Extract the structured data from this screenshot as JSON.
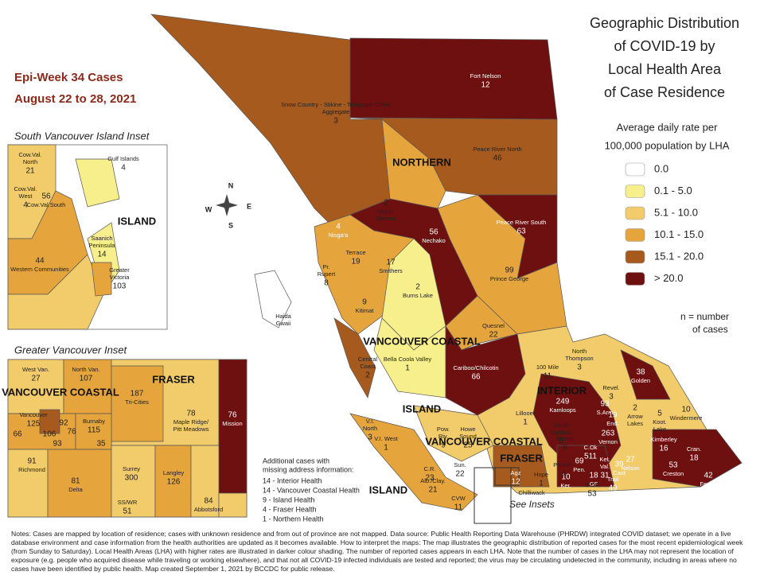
{
  "title": [
    "Geographic Distribution",
    "of COVID-19 by",
    "Local Health Area",
    "of Case Residence"
  ],
  "epi_week": {
    "title": "Epi-Week 34 Cases",
    "dates": "August 22 to 28, 2021"
  },
  "legend": {
    "subtitle": [
      "Average daily rate per",
      "100,000 population by LHA"
    ],
    "items": [
      {
        "label": "0.0",
        "color": "#ffffff"
      },
      {
        "label": "0.1 - 5.0",
        "color": "#f7ef8c"
      },
      {
        "label": "5.1 - 10.0",
        "color": "#f2cc6a"
      },
      {
        "label": "10.1 - 15.0",
        "color": "#e6a43c"
      },
      {
        "label": "15.1 - 20.0",
        "color": "#a65a1e"
      },
      {
        "label": "> 20.0",
        "color": "#6e1010"
      }
    ],
    "note": [
      "n = number",
      "of cases"
    ]
  },
  "compass": [
    "N",
    "E",
    "S",
    "W"
  ],
  "main_map": {
    "regions": [
      "NORTHERN",
      "VANCOUVER COASTAL",
      "INTERIOR",
      "ISLAND",
      "FRASER",
      "ISLAND",
      "VANCOUVER COASTAL"
    ],
    "areas": [
      {
        "name": [
          "Fort Nelson"
        ],
        "cases": 12
      },
      {
        "name": [
          "Snow Country - Stikine - Telegraph Creek",
          "Aggregate"
        ],
        "cases": 3
      },
      {
        "name": [
          "Peace River North"
        ],
        "cases": 46
      },
      {
        "name": [
          "Peace River South"
        ],
        "cases": 63
      },
      {
        "name": [
          "Nechako"
        ],
        "cases": 56
      },
      {
        "name": [
          "Prince George"
        ],
        "cases": 99
      },
      {
        "name": [
          "Nisga'a"
        ],
        "cases": 4
      },
      {
        "name": [
          "Upper",
          "Skeena"
        ],
        "cases": 2
      },
      {
        "name": [
          "Terrace"
        ],
        "cases": 19
      },
      {
        "name": [
          "Smithers"
        ],
        "cases": 17
      },
      {
        "name": [
          "Pr.",
          "Rupert"
        ],
        "cases": 8
      },
      {
        "name": [
          "Burns Lake"
        ],
        "cases": 2
      },
      {
        "name": [
          "Kitimat"
        ],
        "cases": 9
      },
      {
        "name": [
          "Haida",
          "Gwaii"
        ]
      },
      {
        "name": [
          "Quesnel"
        ],
        "cases": 22
      },
      {
        "name": [
          "Central",
          "Coast"
        ],
        "cases": 2
      },
      {
        "name": [
          "Bella Coola Valley"
        ],
        "cases": 1
      },
      {
        "name": [
          "Cariboo/Chilcotin"
        ],
        "cases": 66
      },
      {
        "name": [
          "100 Mile"
        ],
        "cases": 11
      },
      {
        "name": [
          "North",
          "Thompson"
        ],
        "cases": 3
      },
      {
        "name": [
          "Revel."
        ],
        "cases": 3
      },
      {
        "name": [
          "Golden"
        ],
        "cases": 38
      },
      {
        "name": [
          "Kamloops"
        ],
        "cases": 249
      },
      {
        "name": [
          "Lillooet"
        ],
        "cases": 1
      },
      {
        "name": [
          "South",
          "Cariboo"
        ],
        "cases": 5
      },
      {
        "name": [
          "S.Arm"
        ],
        "cases": 93
      },
      {
        "name": [
          "End."
        ],
        "cases": 19
      },
      {
        "name": [
          "Vernon"
        ],
        "cases": 263
      },
      {
        "name": [
          "Arrow",
          "Lakes"
        ],
        "cases": 2
      },
      {
        "name": [
          "Koot.",
          "Lake"
        ],
        "cases": 5
      },
      {
        "name": [
          "Windermere"
        ],
        "cases": 10
      },
      {
        "name": [
          "Merritt"
        ],
        "cases": 8
      },
      {
        "name": [
          "Kimberley"
        ],
        "cases": 16
      },
      {
        "name": [
          "Cran."
        ],
        "cases": 18
      },
      {
        "name": [
          "Fernie"
        ],
        "cases": 42
      },
      {
        "name": [
          "Creston"
        ],
        "cases": 53
      },
      {
        "name": [
          "Nelson"
        ],
        "cases": 27
      },
      {
        "name": [
          "Cast"
        ],
        "cases": 39
      },
      {
        "name": [
          "Trail"
        ],
        "cases": 49
      },
      {
        "name": [
          "GF"
        ],
        "cases": 18
      },
      {
        "name": [
          "C.Ok"
        ],
        "cases": 511
      },
      {
        "name": [
          "Pen."
        ],
        "cases": 69
      },
      {
        "name": [
          "Ker."
        ],
        "cases": 10
      },
      {
        "name": [
          "S.OK"
        ],
        "cases": 53
      },
      {
        "name": [
          "Ket.",
          "Val."
        ],
        "cases": 31
      },
      {
        "name": [
          "Princet."
        ],
        "cases": 4
      },
      {
        "name": [
          "Hope"
        ],
        "cases": 1
      },
      {
        "name": [
          "Chilliwack"
        ]
      },
      {
        "name": [
          "V.I.",
          "North"
        ],
        "cases": 3
      },
      {
        "name": [
          "V.I. West"
        ],
        "cases": 1
      },
      {
        "name": [
          "C.R."
        ],
        "cases": 23
      },
      {
        "name": [
          "Pow.",
          "Riv."
        ],
        "cases": 9
      },
      {
        "name": [
          "Howe",
          "Sound"
        ],
        "cases": 25
      },
      {
        "name": [
          "Sun."
        ],
        "cases": 22
      },
      {
        "name": [
          "Alb./Clay."
        ],
        "cases": 21
      },
      {
        "name": [
          "CVW"
        ],
        "cases": 11
      },
      {
        "name": [
          "Agz"
        ],
        "cases": 12
      }
    ],
    "see_insets": "See Insets"
  },
  "south_island_inset": {
    "title": "South Vancouver Island Inset",
    "region": "ISLAND",
    "areas": [
      {
        "name": [
          "Cow.Val.",
          "North"
        ],
        "cases": 21
      },
      {
        "name": [
          "Gulf Islands"
        ],
        "cases": 4
      },
      {
        "name": [
          "Cow.Val.",
          "West"
        ],
        "cases": 4
      },
      {
        "name": [
          "Cow.Val.South"
        ],
        "cases": 56
      },
      {
        "name": [
          "Saanich",
          "Peninsula"
        ],
        "cases": 14
      },
      {
        "name": [
          "Western Communities"
        ],
        "cases": 44
      },
      {
        "name": [
          "Greater",
          "Victoria"
        ],
        "cases": 103
      }
    ]
  },
  "vancouver_inset": {
    "title": "Greater Vancouver Inset",
    "regions": [
      "VANCOUVER COASTAL",
      "FRASER"
    ],
    "areas": [
      {
        "name": [
          "West Van."
        ],
        "cases": 27
      },
      {
        "name": [
          "North Van."
        ],
        "cases": 107
      },
      {
        "name": [
          "Vancouver"
        ],
        "cases": 125
      },
      {
        "name": [
          "Tri-Cities"
        ],
        "cases": 187
      },
      {
        "name": [
          "Maple Ridge/",
          "Pitt Meadows"
        ],
        "cases": 78
      },
      {
        "name": [
          "Mission"
        ],
        "cases": 76
      },
      {
        "name": [
          "Burnaby"
        ],
        "cases": 115
      },
      {
        "name": [
          "Richmond"
        ],
        "cases": 91
      },
      {
        "name": [
          "Surrey"
        ],
        "cases": 300
      },
      {
        "name": [
          "Langley"
        ],
        "cases": 126
      },
      {
        "name": [
          "Delta"
        ],
        "cases": 81
      },
      {
        "name": [
          "SS/WR"
        ],
        "cases": 51
      },
      {
        "name": [
          "Abbotsford"
        ],
        "cases": 84
      },
      {
        "cases": 92
      },
      {
        "cases": 66
      },
      {
        "cases": 106
      },
      {
        "cases": 76
      },
      {
        "cases": 93
      },
      {
        "cases": 35
      }
    ]
  },
  "additional_cases": {
    "title": [
      "Additional cases with",
      "missing address information:"
    ],
    "items": [
      "14 - Interior Health",
      "14 - Vancouver Coastal Health",
      "9 - Island Health",
      "4 - Fraser Health",
      "1 - Northern Health"
    ]
  },
  "notes": "Notes: Cases are mapped by location of residence; cases with unknown residence and from out of province are not mapped. Data source: Public Health Reporting Data Warehouse (PHRDW) integrated COVID dataset; we operate in a live database environment and case information from the health authorities are updated as it becomes available. How to interpret the maps: The map illustrates the geographic distribution of reported cases for the most recent epidemiological week (from Sunday to Saturday). Local Health Areas (LHA) with higher rates are illustrated in darker colour shading. The number of reported cases appears in each LHA. Note that the number of cases in the LHA may not represent the location of exposure (e.g. people who acquired disease while traveling or working elsewhere), and that not all COVID-19 infected individuals are tested and reported; the virus may be circulating undetected in the community, including in areas where no cases have been identified by public health. Map created September 1, 2021 by BCCDC for public release."
}
